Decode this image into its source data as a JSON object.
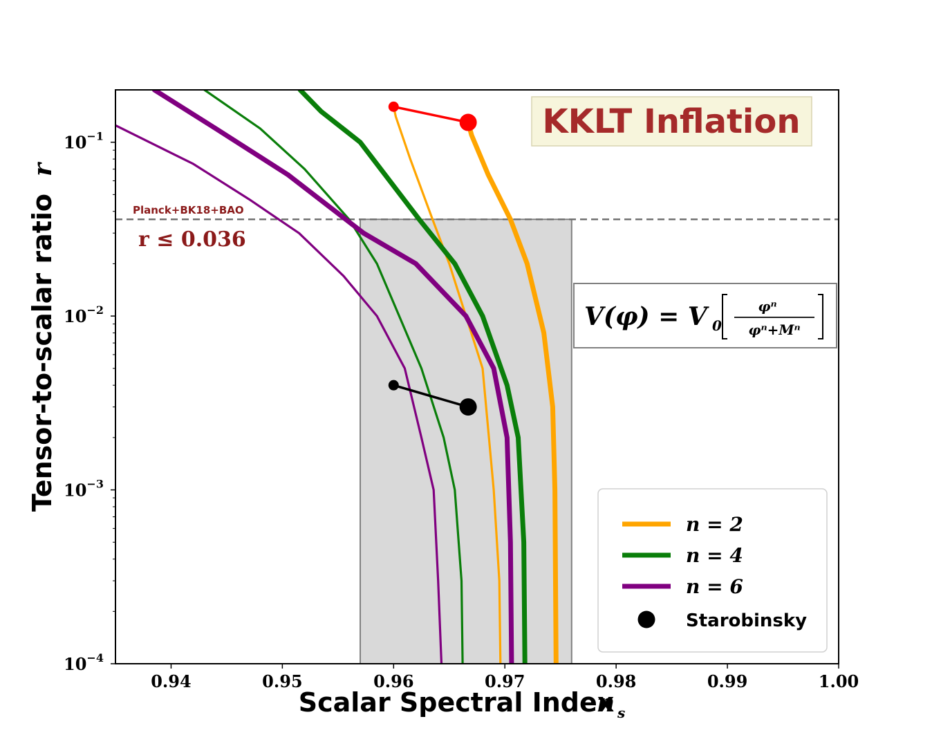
{
  "chart_data": {
    "type": "line",
    "title": "KKLT Inflation",
    "xlabel": "Scalar Spectral Index",
    "xlabel_symbol": "n",
    "xlabel_subscript": "s",
    "ylabel": "Tensor-to-scalar ratio",
    "ylabel_symbol": "r",
    "xlim": [
      0.935,
      1.0
    ],
    "ylim": [
      0.0001,
      0.2
    ],
    "yscale": "log",
    "xticks": [
      0.94,
      0.95,
      0.96,
      0.97,
      0.98,
      0.99,
      1.0
    ],
    "xtick_labels": [
      "0.94",
      "0.95",
      "0.96",
      "0.97",
      "0.98",
      "0.99",
      "1.00"
    ],
    "yticks": [
      0.0001,
      0.001,
      0.01,
      0.1
    ],
    "ytick_bases": [
      "10",
      "10",
      "10",
      "10"
    ],
    "ytick_exponents": [
      "−4",
      "−3",
      "−2",
      "−1"
    ],
    "constraint": {
      "label_small": "Planck+BK18+BAO",
      "label_big": "r ≤ 0.036",
      "r_max": 0.036,
      "ns_min": 0.957,
      "ns_max": 0.976
    },
    "formula": {
      "lhs": "V(φ) = V",
      "lhs_sub": "0",
      "numerator": "φⁿ",
      "denominator": "φⁿ+Mⁿ"
    },
    "series": [
      {
        "name": "n = 2 (thin)",
        "color": "#ffa500",
        "width": 3.2,
        "legend": false,
        "x": [
          0.96,
          0.9602,
          0.9615,
          0.9635,
          0.965,
          0.9665,
          0.968,
          0.969,
          0.9695,
          0.9696
        ],
        "y": [
          0.16,
          0.14,
          0.08,
          0.036,
          0.02,
          0.01,
          0.005,
          0.001,
          0.0003,
          0.0001
        ]
      },
      {
        "name": "n = 2",
        "color": "#ffa500",
        "width": 7,
        "legend": true,
        "legend_label": "n = 2",
        "x": [
          0.9667,
          0.967,
          0.9685,
          0.9705,
          0.972,
          0.9735,
          0.9743,
          0.9745,
          0.9746
        ],
        "y": [
          0.13,
          0.11,
          0.065,
          0.036,
          0.02,
          0.008,
          0.003,
          0.001,
          0.0001
        ]
      },
      {
        "name": "n = 4 (thin)",
        "color": "#0a7e0a",
        "width": 3.2,
        "legend": false,
        "x": [
          0.943,
          0.948,
          0.952,
          0.956,
          0.9585,
          0.9605,
          0.9625,
          0.9645,
          0.9655,
          0.9661,
          0.9662
        ],
        "y": [
          0.2,
          0.12,
          0.07,
          0.036,
          0.02,
          0.01,
          0.005,
          0.002,
          0.001,
          0.0003,
          0.0001
        ]
      },
      {
        "name": "n = 4",
        "color": "#0a7e0a",
        "width": 7,
        "legend": true,
        "legend_label": "n = 4",
        "x": [
          0.9516,
          0.9535,
          0.957,
          0.9623,
          0.9655,
          0.968,
          0.9702,
          0.9712,
          0.9717,
          0.9718
        ],
        "y": [
          0.2,
          0.15,
          0.1,
          0.036,
          0.02,
          0.01,
          0.004,
          0.002,
          0.0005,
          0.0001
        ]
      },
      {
        "name": "n = 6 (thin)",
        "color": "#800080",
        "width": 3.2,
        "legend": false,
        "x": [
          0.935,
          0.942,
          0.947,
          0.9515,
          0.9555,
          0.9585,
          0.961,
          0.9625,
          0.9636,
          0.964,
          0.9643
        ],
        "y": [
          0.125,
          0.075,
          0.047,
          0.03,
          0.017,
          0.01,
          0.005,
          0.002,
          0.001,
          0.0003,
          0.0001
        ]
      },
      {
        "name": "n = 6",
        "color": "#800080",
        "width": 7,
        "legend": true,
        "legend_label": "n = 6",
        "x": [
          0.9385,
          0.944,
          0.9505,
          0.9573,
          0.962,
          0.9665,
          0.969,
          0.9702,
          0.9705,
          0.9706
        ],
        "y": [
          0.2,
          0.12,
          0.065,
          0.03,
          0.02,
          0.01,
          0.005,
          0.002,
          0.0005,
          0.0001
        ]
      }
    ],
    "starobinsky": {
      "legend_label": "Starobinsky",
      "color": "#000000",
      "x": [
        0.96,
        0.9667
      ],
      "y": [
        0.004,
        0.003
      ]
    },
    "kklt_red": {
      "color": "#ff0000",
      "x": [
        0.96,
        0.9667
      ],
      "y": [
        0.16,
        0.13
      ]
    }
  }
}
